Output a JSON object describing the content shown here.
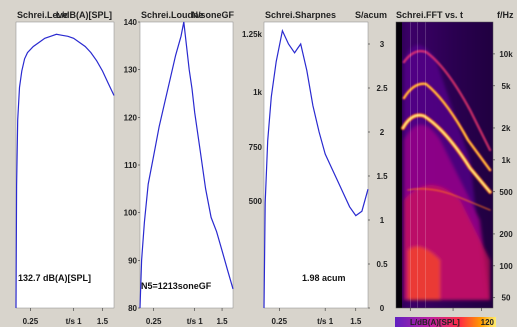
{
  "chart_data": [
    {
      "type": "line",
      "title": "Schrei.Leve",
      "ylabel": "L/dB(A)[SPL]",
      "xlabel": "t/s",
      "xlim": [
        0,
        1.7
      ],
      "ylim": [
        0,
        140
      ],
      "x_ticks": [
        0.25,
        1,
        1.5
      ],
      "x_tick_labels": [
        "0.25",
        "t/s 1",
        "1.5"
      ],
      "y_ticks": [],
      "annotation": "132.7 dB(A)[SPL]",
      "color": "#2a2ad0",
      "series": [
        {
          "x": [
            0.0,
            0.01,
            0.03,
            0.06,
            0.1,
            0.15,
            0.2,
            0.3,
            0.4,
            0.5,
            0.6,
            0.7,
            0.8,
            0.9,
            1.0,
            1.1,
            1.2,
            1.3,
            1.4,
            1.5,
            1.6,
            1.7
          ],
          "y": [
            0,
            60,
            92,
            108,
            116,
            122,
            125,
            128,
            130,
            132,
            133,
            134,
            133.5,
            133,
            132,
            130,
            128,
            125,
            121,
            116,
            110,
            104
          ]
        }
      ]
    },
    {
      "type": "line",
      "title": "Schrei.Loudne",
      "ylabel": "N/soneGF",
      "xlabel": "t/s",
      "xlim": [
        0,
        1.7
      ],
      "ylim": [
        80,
        140
      ],
      "x_ticks": [
        0.25,
        1,
        1.5
      ],
      "x_tick_labels": [
        "0.25",
        "t/s 1",
        "1.5"
      ],
      "y_ticks": [
        80,
        90,
        100,
        110,
        120,
        130,
        140
      ],
      "annotation": "N5=1213soneGF",
      "color": "#2a2ad0",
      "series": [
        {
          "x": [
            0.0,
            0.03,
            0.08,
            0.15,
            0.25,
            0.35,
            0.45,
            0.55,
            0.65,
            0.75,
            0.8,
            0.85,
            0.9,
            0.95,
            1.0,
            1.1,
            1.2,
            1.3,
            1.4,
            1.5,
            1.6,
            1.7
          ],
          "y": [
            80,
            90,
            98,
            106,
            112,
            118,
            123,
            128,
            133,
            137,
            140,
            135,
            130,
            126,
            121,
            113,
            105,
            99,
            96,
            92,
            88,
            84
          ]
        }
      ]
    },
    {
      "type": "line",
      "title": "Schrei.Sharpnes",
      "ylabel": "S/acum",
      "xlabel": "t/s",
      "xlim": [
        0,
        1.7
      ],
      "ylim": [
        0,
        3.25
      ],
      "x_ticks": [
        0.25,
        1,
        1.5
      ],
      "x_tick_labels": [
        "0.25",
        "t/s 1",
        "1.5"
      ],
      "y_ticks": [
        0,
        0.5,
        1,
        1.5,
        2,
        2.5,
        3
      ],
      "y_tick_labels": [
        "0",
        "0.5",
        "1",
        "1.5",
        "2",
        "2.5",
        "3"
      ],
      "right_ticks": [
        1.25,
        1.0,
        0.75,
        0.5
      ],
      "right_tick_labels": [
        "1.25k",
        "1k",
        "750",
        "500"
      ],
      "annotation": "1.98 acum",
      "color": "#2a2ad0",
      "series": [
        {
          "x": [
            0.0,
            0.02,
            0.06,
            0.12,
            0.2,
            0.3,
            0.4,
            0.5,
            0.55,
            0.6,
            0.7,
            0.8,
            0.9,
            1.0,
            1.1,
            1.2,
            1.3,
            1.4,
            1.5,
            1.6,
            1.7
          ],
          "y": [
            0,
            1.2,
            1.9,
            2.4,
            2.8,
            3.15,
            3.0,
            2.9,
            2.95,
            3.0,
            2.7,
            2.3,
            2.0,
            1.75,
            1.6,
            1.45,
            1.3,
            1.15,
            1.05,
            1.1,
            1.35
          ]
        }
      ]
    },
    {
      "type": "heatmap",
      "title": "Schrei.FFT vs. t",
      "ylabel": "f/Hz",
      "xlabel": "t/s",
      "xlim": [
        0,
        1.7
      ],
      "x_ticks": [
        0.25,
        1,
        1.5
      ],
      "x_tick_labels": [
        "0.25",
        "t/s 1",
        "1.5"
      ],
      "y_ticks": [
        10000,
        5000,
        2000,
        1000,
        500,
        200,
        100,
        50
      ],
      "y_tick_labels": [
        "10k",
        "5k",
        "2k",
        "1k",
        "500",
        "200",
        "100",
        "50"
      ],
      "colorbar_label": "L/dB(A)[SPL]",
      "colorbar_max": "120",
      "colormap": [
        "#000000",
        "#3a0070",
        "#8a0090",
        "#d0005a",
        "#ff4000",
        "#ff9900",
        "#ffee60"
      ]
    }
  ]
}
